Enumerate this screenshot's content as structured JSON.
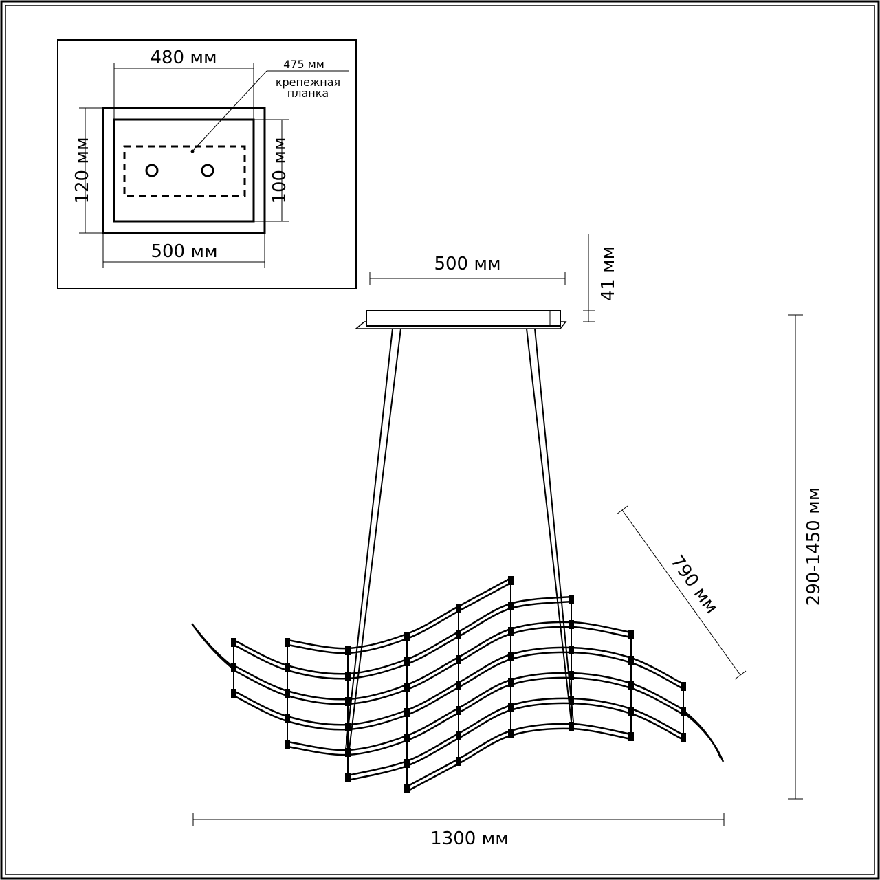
{
  "inset": {
    "top_width": "480 мм",
    "bracket_length": "475 мм",
    "bracket_label_line1": "крепежная",
    "bracket_label_line2": "планка",
    "outer_height": "120 мм",
    "inner_height": "100 мм",
    "bottom_width": "500 мм"
  },
  "main": {
    "canopy_width": "500 мм",
    "canopy_height": "41 мм",
    "overall_height": "290-1450 мм",
    "depth": "790 мм",
    "overall_width": "1300 мм"
  },
  "colors": {
    "line": "#000000",
    "background": "#ffffff"
  }
}
